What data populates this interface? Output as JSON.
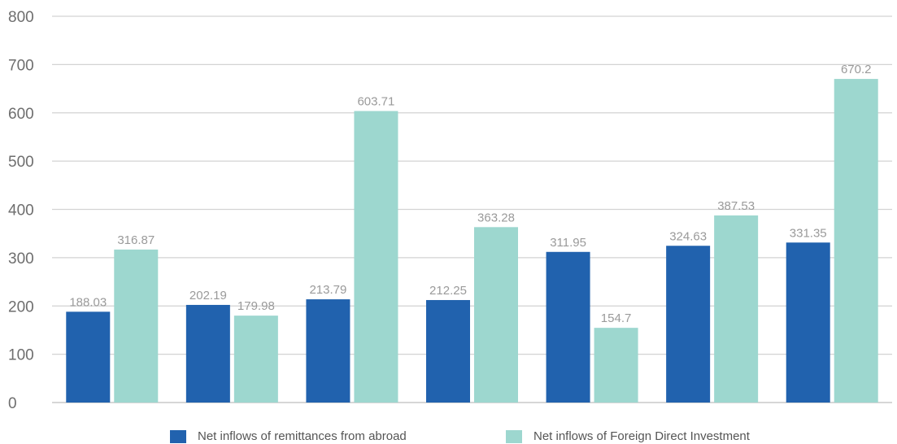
{
  "chart_data": {
    "type": "bar",
    "title": "",
    "xlabel": "",
    "ylabel": "",
    "categories": [
      "",
      "",
      "",
      "",
      "",
      "",
      ""
    ],
    "ylim": [
      0,
      800
    ],
    "yticks": [
      0,
      100,
      200,
      300,
      400,
      500,
      600,
      700,
      800
    ],
    "grid": true,
    "legend_position": "bottom",
    "series": [
      {
        "name": "Net inflows of remittances from abroad",
        "color": "#2162ae",
        "values": [
          188.03,
          202.19,
          213.79,
          212.25,
          311.95,
          324.63,
          331.35
        ]
      },
      {
        "name": "Net inflows of Foreign Direct Investment",
        "color": "#9dd7cf",
        "values": [
          316.87,
          179.98,
          603.71,
          363.28,
          154.7,
          387.53,
          670.2
        ]
      }
    ]
  }
}
